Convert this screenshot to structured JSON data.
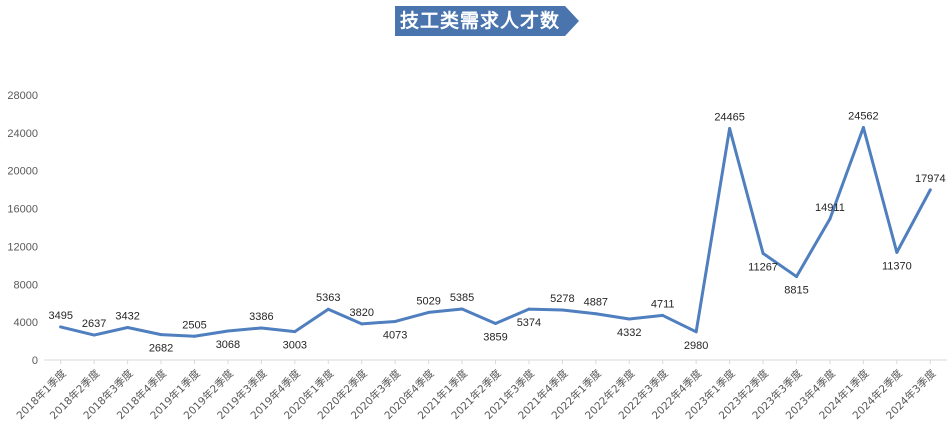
{
  "title": "技工类需求人才数",
  "colors": {
    "title_bg": "#4a74ad",
    "line": "#4f7fbf",
    "grid": "#d9d9d9",
    "axis_text": "#595959",
    "label_text": "#262626"
  },
  "chart_data": {
    "type": "line",
    "title": "技工类需求人才数",
    "xlabel": "",
    "ylabel": "",
    "ylim": [
      0,
      28000
    ],
    "yticks": [
      0,
      4000,
      8000,
      12000,
      16000,
      20000,
      24000,
      28000
    ],
    "grid": false,
    "legend": "none",
    "categories": [
      "2018年1季度",
      "2018年2季度",
      "2018年3季度",
      "2018年4季度",
      "2019年1季度",
      "2019年2季度",
      "2019年3季度",
      "2019年4季度",
      "2020年1季度",
      "2020年2季度",
      "2020年3季度",
      "2020年4季度",
      "2021年1季度",
      "2021年2季度",
      "2021年3季度",
      "2021年4季度",
      "2022年1季度",
      "2022年2季度",
      "2022年3季度",
      "2022年4季度",
      "2023年1季度",
      "2023年2季度",
      "2023年3季度",
      "2023年4季度",
      "2024年1季度",
      "2024年2季度",
      "2024年3季度"
    ],
    "values": [
      3495,
      2637,
      3432,
      2682,
      2505,
      3068,
      3386,
      3003,
      5363,
      3820,
      4073,
      5029,
      5385,
      3859,
      5374,
      5278,
      4887,
      4332,
      4711,
      2980,
      24465,
      11267,
      8815,
      14911,
      24562,
      11370,
      17974
    ],
    "label_positions": [
      "above",
      "above",
      "above",
      "below",
      "above",
      "below",
      "above",
      "below",
      "above",
      "above",
      "below",
      "above",
      "above",
      "below",
      "below",
      "above",
      "above",
      "below",
      "above",
      "below",
      "above",
      "below",
      "below",
      "above",
      "above",
      "below",
      "above"
    ]
  }
}
